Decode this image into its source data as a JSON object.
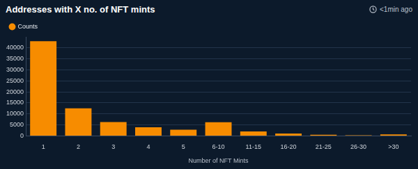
{
  "header": {
    "status": "<1min ago"
  },
  "chart_data": {
    "type": "bar",
    "title": "Addresses with X no. of NFT mints",
    "categories": [
      "1",
      "2",
      "3",
      "4",
      "5",
      "6-10",
      "11-15",
      "16-20",
      "21-25",
      "26-30",
      ">30"
    ],
    "series": [
      {
        "name": "Counts",
        "color": "#f78c00",
        "values": [
          43000,
          12500,
          6300,
          3900,
          2800,
          6200,
          2000,
          1100,
          500,
          300,
          700
        ]
      }
    ],
    "xlabel": "Number of NFT Mints",
    "ylim": [
      0,
      45000
    ],
    "yticks": [
      0,
      5000,
      10000,
      15000,
      20000,
      25000,
      30000,
      35000,
      40000
    ],
    "grid": true,
    "legend": "top-left"
  }
}
